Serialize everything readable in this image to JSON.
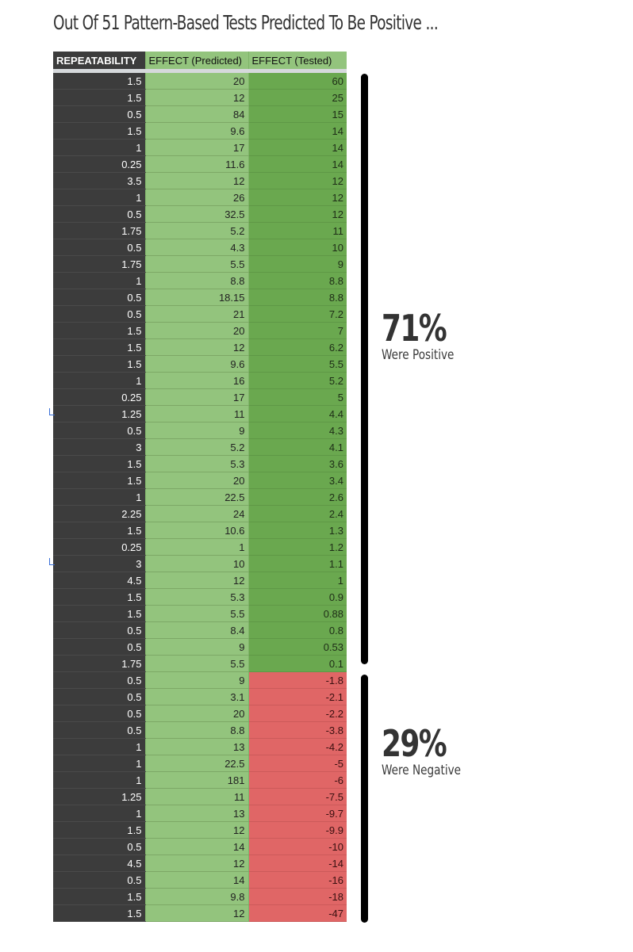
{
  "title": "Out Of 51 Pattern-Based Tests Predicted To Be Positive ...",
  "table": {
    "headers": [
      "REPEATABILITY",
      "EFFECT (Predicted)",
      "EFFECT (Tested)"
    ],
    "rows": [
      {
        "repeatability": "1.5",
        "predicted": "20",
        "tested": "60",
        "sign": "pos"
      },
      {
        "repeatability": "1.5",
        "predicted": "12",
        "tested": "25",
        "sign": "pos"
      },
      {
        "repeatability": "0.5",
        "predicted": "84",
        "tested": "15",
        "sign": "pos"
      },
      {
        "repeatability": "1.5",
        "predicted": "9.6",
        "tested": "14",
        "sign": "pos"
      },
      {
        "repeatability": "1",
        "predicted": "17",
        "tested": "14",
        "sign": "pos"
      },
      {
        "repeatability": "0.25",
        "predicted": "11.6",
        "tested": "14",
        "sign": "pos"
      },
      {
        "repeatability": "3.5",
        "predicted": "12",
        "tested": "12",
        "sign": "pos"
      },
      {
        "repeatability": "1",
        "predicted": "26",
        "tested": "12",
        "sign": "pos"
      },
      {
        "repeatability": "0.5",
        "predicted": "32.5",
        "tested": "12",
        "sign": "pos"
      },
      {
        "repeatability": "1.75",
        "predicted": "5.2",
        "tested": "11",
        "sign": "pos"
      },
      {
        "repeatability": "0.5",
        "predicted": "4.3",
        "tested": "10",
        "sign": "pos"
      },
      {
        "repeatability": "1.75",
        "predicted": "5.5",
        "tested": "9",
        "sign": "pos"
      },
      {
        "repeatability": "1",
        "predicted": "8.8",
        "tested": "8.8",
        "sign": "pos"
      },
      {
        "repeatability": "0.5",
        "predicted": "18.15",
        "tested": "8.8",
        "sign": "pos"
      },
      {
        "repeatability": "0.5",
        "predicted": "21",
        "tested": "7.2",
        "sign": "pos"
      },
      {
        "repeatability": "1.5",
        "predicted": "20",
        "tested": "7",
        "sign": "pos"
      },
      {
        "repeatability": "1.5",
        "predicted": "12",
        "tested": "6.2",
        "sign": "pos"
      },
      {
        "repeatability": "1.5",
        "predicted": "9.6",
        "tested": "5.5",
        "sign": "pos"
      },
      {
        "repeatability": "1",
        "predicted": "16",
        "tested": "5.2",
        "sign": "pos"
      },
      {
        "repeatability": "0.25",
        "predicted": "17",
        "tested": "5",
        "sign": "pos"
      },
      {
        "repeatability": "1.25",
        "predicted": "11",
        "tested": "4.4",
        "sign": "pos"
      },
      {
        "repeatability": "0.5",
        "predicted": "9",
        "tested": "4.3",
        "sign": "pos"
      },
      {
        "repeatability": "3",
        "predicted": "5.2",
        "tested": "4.1",
        "sign": "pos"
      },
      {
        "repeatability": "1.5",
        "predicted": "5.3",
        "tested": "3.6",
        "sign": "pos"
      },
      {
        "repeatability": "1.5",
        "predicted": "20",
        "tested": "3.4",
        "sign": "pos"
      },
      {
        "repeatability": "1",
        "predicted": "22.5",
        "tested": "2.6",
        "sign": "pos"
      },
      {
        "repeatability": "2.25",
        "predicted": "24",
        "tested": "2.4",
        "sign": "pos"
      },
      {
        "repeatability": "1.5",
        "predicted": "10.6",
        "tested": "1.3",
        "sign": "pos"
      },
      {
        "repeatability": "0.25",
        "predicted": "1",
        "tested": "1.2",
        "sign": "pos"
      },
      {
        "repeatability": "3",
        "predicted": "10",
        "tested": "1.1",
        "sign": "pos"
      },
      {
        "repeatability": "4.5",
        "predicted": "12",
        "tested": "1",
        "sign": "pos"
      },
      {
        "repeatability": "1.5",
        "predicted": "5.3",
        "tested": "0.9",
        "sign": "pos"
      },
      {
        "repeatability": "1.5",
        "predicted": "5.5",
        "tested": "0.88",
        "sign": "pos"
      },
      {
        "repeatability": "0.5",
        "predicted": "8.4",
        "tested": "0.8",
        "sign": "pos"
      },
      {
        "repeatability": "0.5",
        "predicted": "9",
        "tested": "0.53",
        "sign": "pos"
      },
      {
        "repeatability": "1.75",
        "predicted": "5.5",
        "tested": "0.1",
        "sign": "pos"
      },
      {
        "repeatability": "0.5",
        "predicted": "9",
        "tested": "-1.8",
        "sign": "neg"
      },
      {
        "repeatability": "0.5",
        "predicted": "3.1",
        "tested": "-2.1",
        "sign": "neg"
      },
      {
        "repeatability": "0.5",
        "predicted": "20",
        "tested": "-2.2",
        "sign": "neg"
      },
      {
        "repeatability": "0.5",
        "predicted": "8.8",
        "tested": "-3.8",
        "sign": "neg"
      },
      {
        "repeatability": "1",
        "predicted": "13",
        "tested": "-4.2",
        "sign": "neg"
      },
      {
        "repeatability": "1",
        "predicted": "22.5",
        "tested": "-5",
        "sign": "neg"
      },
      {
        "repeatability": "1",
        "predicted": "181",
        "tested": "-6",
        "sign": "neg"
      },
      {
        "repeatability": "1.25",
        "predicted": "11",
        "tested": "-7.5",
        "sign": "neg"
      },
      {
        "repeatability": "1",
        "predicted": "13",
        "tested": "-9.7",
        "sign": "neg"
      },
      {
        "repeatability": "1.5",
        "predicted": "12",
        "tested": "-9.9",
        "sign": "neg"
      },
      {
        "repeatability": "0.5",
        "predicted": "14",
        "tested": "-10",
        "sign": "neg"
      },
      {
        "repeatability": "4.5",
        "predicted": "12",
        "tested": "-14",
        "sign": "neg"
      },
      {
        "repeatability": "0.5",
        "predicted": "14",
        "tested": "-16",
        "sign": "neg"
      },
      {
        "repeatability": "1.5",
        "predicted": "9.8",
        "tested": "-18",
        "sign": "neg"
      },
      {
        "repeatability": "1.5",
        "predicted": "12",
        "tested": "-47",
        "sign": "neg"
      }
    ]
  },
  "annotations": {
    "positive": {
      "percent": "71%",
      "label": "Were Positive"
    },
    "negative": {
      "percent": "29%",
      "label": "Were Negative"
    }
  },
  "colors": {
    "repeatability_bg": "#3c3c3c",
    "predicted_bg": "#93c47d",
    "tested_positive_bg": "#6aa84f",
    "tested_negative_bg": "#e06666",
    "bracket": "#000000",
    "text_dark": "#333333"
  }
}
